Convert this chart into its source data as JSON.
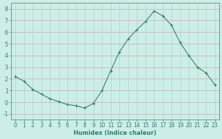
{
  "x": [
    0,
    1,
    2,
    3,
    4,
    5,
    6,
    7,
    8,
    9,
    10,
    11,
    12,
    13,
    14,
    15,
    16,
    17,
    18,
    19,
    20,
    21,
    22,
    23
  ],
  "y": [
    2.2,
    1.8,
    1.1,
    0.7,
    0.3,
    0.05,
    -0.2,
    -0.3,
    -0.5,
    -0.1,
    1.0,
    2.7,
    4.3,
    5.4,
    6.2,
    6.9,
    7.8,
    7.4,
    6.6,
    5.1,
    4.0,
    3.0,
    2.5,
    1.5
  ],
  "line_color": "#2e7d6e",
  "marker": "+",
  "marker_size": 3,
  "line_width": 0.8,
  "bg_color": "#cceee8",
  "grid_color_h": "#c8a8a8",
  "grid_color_v": "#b8ccc8",
  "xlabel": "Humidex (Indice chaleur)",
  "xlim": [
    -0.5,
    23.5
  ],
  "ylim": [
    -1.5,
    8.5
  ],
  "yticks": [
    -1,
    0,
    1,
    2,
    3,
    4,
    5,
    6,
    7,
    8
  ],
  "xticks": [
    0,
    1,
    2,
    3,
    4,
    5,
    6,
    7,
    8,
    9,
    10,
    11,
    12,
    13,
    14,
    15,
    16,
    17,
    18,
    19,
    20,
    21,
    22,
    23
  ],
  "tick_color": "#2e7d6e",
  "label_fontsize": 6,
  "tick_fontsize": 5.5,
  "spine_color": "#888888"
}
